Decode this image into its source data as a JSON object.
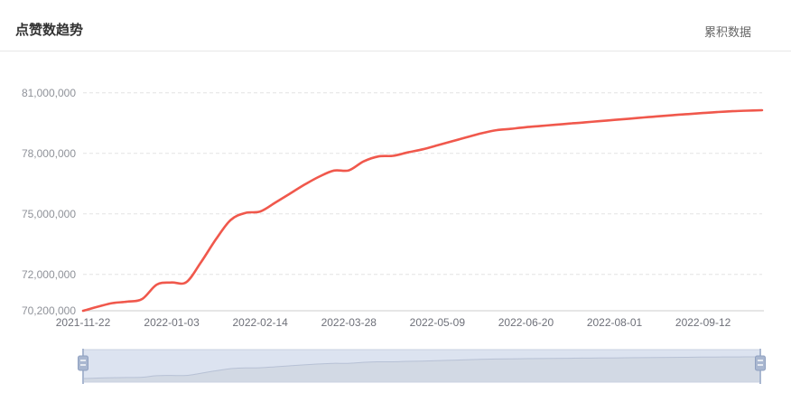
{
  "header": {
    "title": "点赞数趋势",
    "right_label": "累积数据"
  },
  "chart_data": {
    "type": "line",
    "title": "点赞数趋势",
    "series_name": "累积数据",
    "smooth": true,
    "legend_position": "top-right",
    "grid": "horizontal-dashed",
    "ylim": [
      70200000,
      81000000
    ],
    "y_axis_values": [
      70200000,
      72000000,
      75000000,
      78000000,
      81000000
    ],
    "y_axis_labels": [
      "70,200,000",
      "72,000,000",
      "75,000,000",
      "78,000,000",
      "81,000,000"
    ],
    "x_axis_labels": [
      "2021-11-22",
      "2022-01-03",
      "2022-02-14",
      "2022-03-28",
      "2022-05-09",
      "2022-06-20",
      "2022-08-01",
      "2022-09-12"
    ],
    "x": [
      "2021-11-22",
      "2021-11-29",
      "2021-12-06",
      "2021-12-13",
      "2021-12-20",
      "2021-12-27",
      "2022-01-03",
      "2022-01-10",
      "2022-01-17",
      "2022-01-24",
      "2022-01-31",
      "2022-02-07",
      "2022-02-14",
      "2022-02-21",
      "2022-02-28",
      "2022-03-07",
      "2022-03-14",
      "2022-03-21",
      "2022-03-28",
      "2022-04-04",
      "2022-04-11",
      "2022-04-18",
      "2022-04-25",
      "2022-05-02",
      "2022-05-09",
      "2022-05-16",
      "2022-05-23",
      "2022-05-30",
      "2022-06-06",
      "2022-06-13",
      "2022-06-20",
      "2022-06-27",
      "2022-07-04",
      "2022-07-11",
      "2022-07-18",
      "2022-07-25",
      "2022-08-01",
      "2022-08-08",
      "2022-08-15",
      "2022-08-22",
      "2022-08-29",
      "2022-09-05",
      "2022-09-12",
      "2022-09-19",
      "2022-09-26",
      "2022-10-03",
      "2022-10-10"
    ],
    "values": [
      70200000,
      70400000,
      70580000,
      70650000,
      70780000,
      71500000,
      71600000,
      71620000,
      72620000,
      73740000,
      74700000,
      75050000,
      75120000,
      75550000,
      76000000,
      76450000,
      76850000,
      77150000,
      77160000,
      77600000,
      77850000,
      77880000,
      78050000,
      78200000,
      78400000,
      78600000,
      78800000,
      79000000,
      79150000,
      79220000,
      79300000,
      79360000,
      79420000,
      79480000,
      79540000,
      79600000,
      79660000,
      79720000,
      79780000,
      79840000,
      79900000,
      79950000,
      80000000,
      80050000,
      80090000,
      80120000,
      80140000
    ],
    "datazoom": {
      "range_start_label": "2021-11-22",
      "range_end_label": "2022-10-10",
      "selected": "100%"
    }
  },
  "colors": {
    "line": "#f0584c",
    "grid": "#e3e3e3",
    "axis_line": "#cccccc",
    "y_label": "#8f9299",
    "x_label": "#6e7079",
    "dz_fill": "#dce3f0",
    "dz_shadow": "#d2d9e4",
    "dz_line": "#b7c1d5",
    "dz_border": "#c9d1e0",
    "dz_handle": "#a9b7d0",
    "dz_handle_line": "#8fa0c0"
  }
}
